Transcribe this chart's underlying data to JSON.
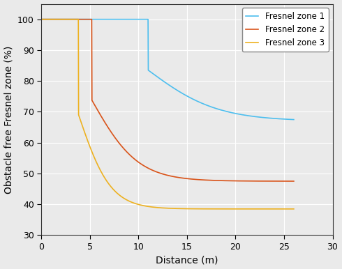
{
  "title": "",
  "xlabel": "Distance (m)",
  "ylabel": "Obstacle free Fresnel zone (%)",
  "xlim": [
    0,
    30
  ],
  "ylim": [
    30,
    105
  ],
  "yticks": [
    30,
    40,
    50,
    60,
    70,
    80,
    90,
    100
  ],
  "xticks": [
    0,
    5,
    10,
    15,
    20,
    25,
    30
  ],
  "colors": {
    "zone1": "#4DBEEE",
    "zone2": "#D95319",
    "zone3": "#EDB120"
  },
  "legend": [
    "Fresnel zone 1",
    "Fresnel zone 2",
    "Fresnel zone 3"
  ],
  "background_color": "#E8E8E8",
  "grid_color": "#FFFFFF",
  "zone1_params": {
    "x_flat_end": 11.0,
    "k": 0.28,
    "ymin": 67.0
  },
  "zone2_params": {
    "x_flat_end": 5.2,
    "k": 0.42,
    "ymin": 47.5
  },
  "zone3_params": {
    "x_flat_end": 3.8,
    "k": 0.6,
    "ymin": 38.5
  }
}
